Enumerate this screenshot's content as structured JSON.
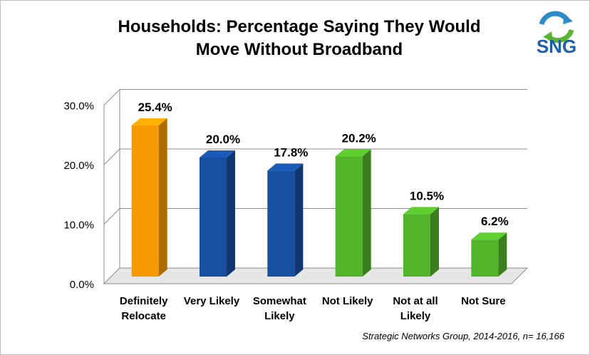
{
  "title_lines": [
    "Households: Percentage Saying They Would",
    "Move Without Broadband"
  ],
  "logo": {
    "text": "SNG",
    "icon": "recycle-arrows-icon",
    "colors": [
      "#2e8bc9",
      "#5cb531",
      "#f0a020"
    ]
  },
  "source": "Strategic Networks Group, 2014-2016, n= 16,166",
  "chart_data": {
    "type": "bar",
    "title": "Households: Percentage Saying They Would Move Without Broadband",
    "categories": [
      [
        "Definitely",
        "Relocate"
      ],
      [
        "Very Likely"
      ],
      [
        "Somewhat",
        "Likely"
      ],
      [
        "Not Likely"
      ],
      [
        "Not at all",
        "Likely"
      ],
      [
        "Not Sure"
      ]
    ],
    "values": [
      25.4,
      20.0,
      17.8,
      20.2,
      10.5,
      6.2
    ],
    "value_labels": [
      "25.4%",
      "20.0%",
      "17.8%",
      "20.2%",
      "10.5%",
      "6.2%"
    ],
    "colors": [
      "#f59a00",
      "#174ea0",
      "#174ea0",
      "#52b52a",
      "#52b52a",
      "#52b52a"
    ],
    "ylim": [
      0,
      30
    ],
    "yticks": [
      0,
      10,
      20,
      30
    ],
    "ytick_labels": [
      "0.0%",
      "10.0%",
      "20.0%",
      "30.0%"
    ],
    "grid": true,
    "style": "3d-column"
  }
}
